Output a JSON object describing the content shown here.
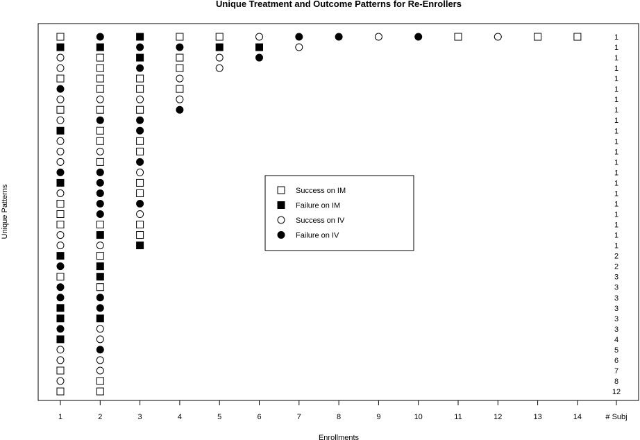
{
  "chart_data": {
    "type": "scatter",
    "title": "Unique Treatment and Outcome Patterns for Re-Enrollers",
    "xlabel": "Enrollments",
    "ylabel": "Unique Patterns",
    "x_ticks": [
      "1",
      "2",
      "3",
      "4",
      "5",
      "6",
      "7",
      "8",
      "9",
      "10",
      "11",
      "12",
      "13",
      "14"
    ],
    "count_header": "# Subj",
    "grid": false,
    "legend_position": "center",
    "legend": [
      {
        "code": "SI",
        "label": "Success on IM",
        "marker": "open-square"
      },
      {
        "code": "FI",
        "label": "Failure on IM",
        "marker": "filled-square"
      },
      {
        "code": "SV",
        "label": "Success on IV",
        "marker": "open-circle"
      },
      {
        "code": "FV",
        "label": "Failure on IV",
        "marker": "filled-circle"
      }
    ],
    "patterns": [
      {
        "sequence": [
          "SI",
          "FV",
          "FI",
          "SI",
          "SI",
          "SV",
          "FV",
          "FV",
          "SV",
          "FV",
          "SI",
          "SV",
          "SI",
          "SI"
        ],
        "subjects": 1
      },
      {
        "sequence": [
          "FI",
          "FI",
          "FV",
          "FV",
          "FI",
          "FI",
          "SV"
        ],
        "subjects": 1
      },
      {
        "sequence": [
          "SV",
          "SI",
          "FI",
          "SI",
          "SV",
          "FV"
        ],
        "subjects": 1
      },
      {
        "sequence": [
          "SV",
          "SI",
          "FV",
          "SI",
          "SV"
        ],
        "subjects": 1
      },
      {
        "sequence": [
          "SI",
          "SI",
          "SI",
          "SV"
        ],
        "subjects": 1
      },
      {
        "sequence": [
          "FV",
          "SI",
          "SI",
          "SI"
        ],
        "subjects": 1
      },
      {
        "sequence": [
          "SV",
          "SV",
          "SV",
          "SV"
        ],
        "subjects": 1
      },
      {
        "sequence": [
          "SI",
          "SI",
          "SI",
          "FV"
        ],
        "subjects": 1
      },
      {
        "sequence": [
          "SV",
          "FV",
          "FV"
        ],
        "subjects": 1
      },
      {
        "sequence": [
          "FI",
          "SI",
          "FV"
        ],
        "subjects": 1
      },
      {
        "sequence": [
          "SV",
          "SI",
          "SI"
        ],
        "subjects": 1
      },
      {
        "sequence": [
          "SV",
          "SV",
          "SI"
        ],
        "subjects": 1
      },
      {
        "sequence": [
          "SV",
          "SI",
          "FV"
        ],
        "subjects": 1
      },
      {
        "sequence": [
          "FV",
          "FV",
          "SV"
        ],
        "subjects": 1
      },
      {
        "sequence": [
          "FI",
          "FV",
          "SI"
        ],
        "subjects": 1
      },
      {
        "sequence": [
          "SV",
          "FV",
          "SI"
        ],
        "subjects": 1
      },
      {
        "sequence": [
          "SI",
          "FV",
          "FV"
        ],
        "subjects": 1
      },
      {
        "sequence": [
          "SI",
          "FV",
          "SV"
        ],
        "subjects": 1
      },
      {
        "sequence": [
          "SI",
          "SI",
          "SI"
        ],
        "subjects": 1
      },
      {
        "sequence": [
          "SV",
          "FI",
          "SI"
        ],
        "subjects": 1
      },
      {
        "sequence": [
          "SV",
          "SV",
          "FI"
        ],
        "subjects": 1
      },
      {
        "sequence": [
          "FI",
          "SI"
        ],
        "subjects": 2
      },
      {
        "sequence": [
          "FV",
          "FI"
        ],
        "subjects": 2
      },
      {
        "sequence": [
          "SI",
          "FI"
        ],
        "subjects": 3
      },
      {
        "sequence": [
          "FV",
          "SI"
        ],
        "subjects": 3
      },
      {
        "sequence": [
          "FV",
          "FV"
        ],
        "subjects": 3
      },
      {
        "sequence": [
          "FI",
          "FV"
        ],
        "subjects": 3
      },
      {
        "sequence": [
          "FI",
          "FI"
        ],
        "subjects": 3
      },
      {
        "sequence": [
          "FV",
          "SV"
        ],
        "subjects": 3
      },
      {
        "sequence": [
          "FI",
          "SV"
        ],
        "subjects": 4
      },
      {
        "sequence": [
          "SV",
          "FV"
        ],
        "subjects": 5
      },
      {
        "sequence": [
          "SV",
          "SV"
        ],
        "subjects": 6
      },
      {
        "sequence": [
          "SI",
          "SV"
        ],
        "subjects": 7
      },
      {
        "sequence": [
          "SV",
          "SI"
        ],
        "subjects": 8
      },
      {
        "sequence": [
          "SI",
          "SI"
        ],
        "subjects": 12
      }
    ]
  }
}
